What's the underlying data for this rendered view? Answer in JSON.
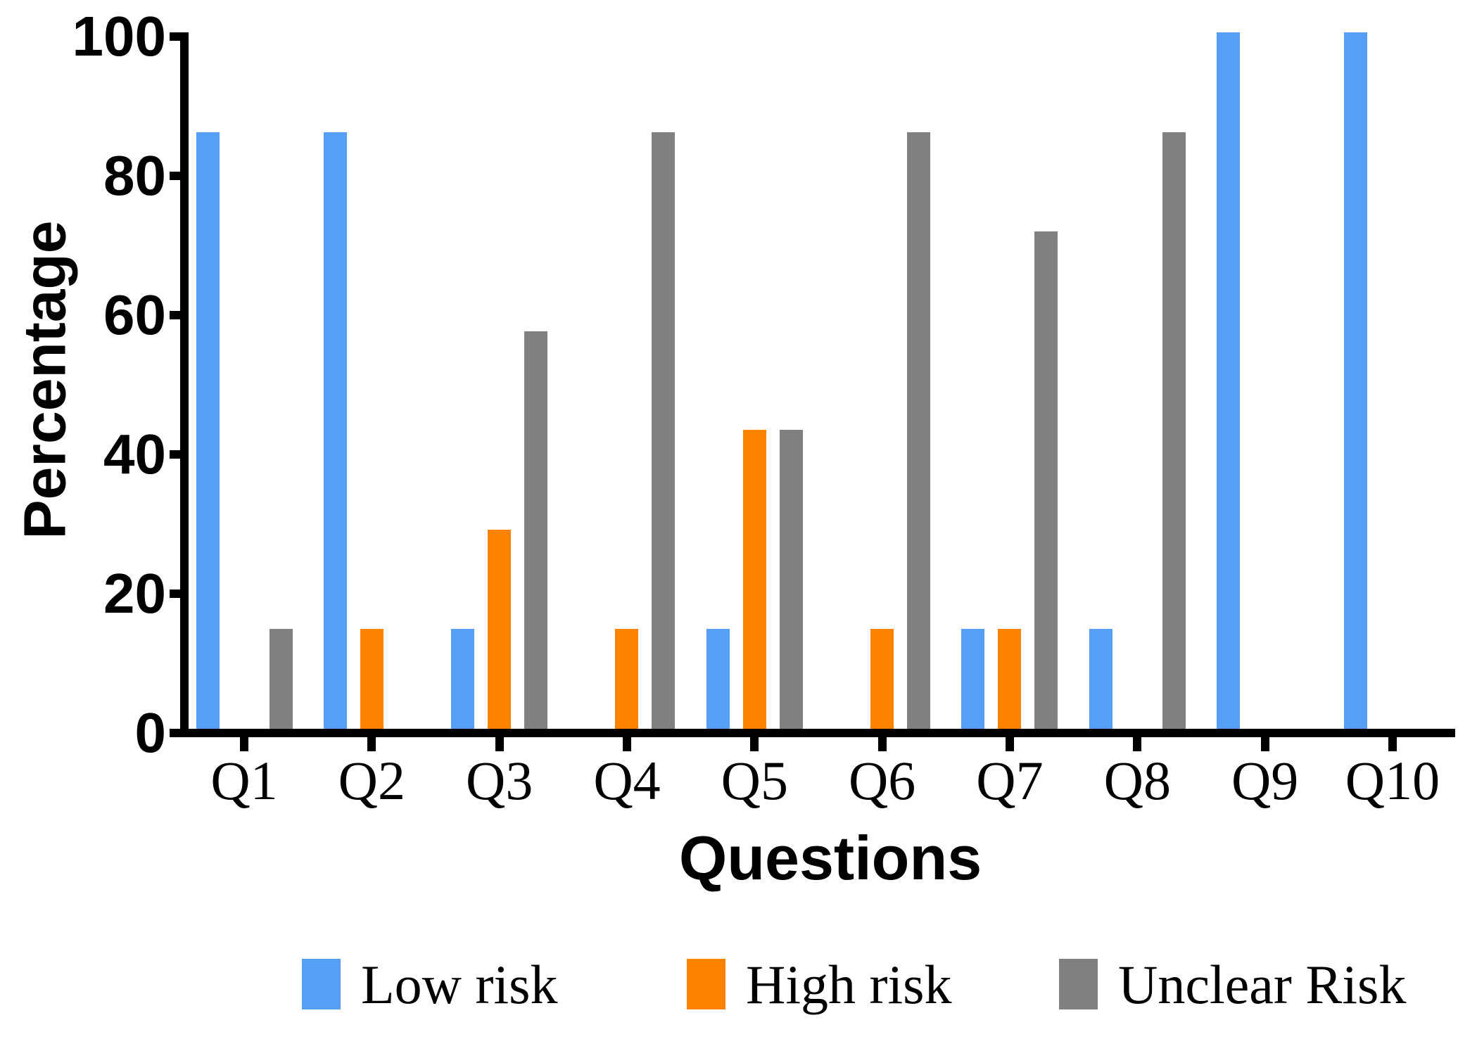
{
  "chart_data": {
    "type": "bar",
    "title": "",
    "xlabel": "Questions",
    "ylabel": "Percentage",
    "ylim": [
      0,
      100
    ],
    "yticks": [
      0,
      20,
      40,
      60,
      80,
      100
    ],
    "categories": [
      "Q1",
      "Q2",
      "Q3",
      "Q4",
      "Q5",
      "Q6",
      "Q7",
      "Q8",
      "Q9",
      "Q10"
    ],
    "series": [
      {
        "name": "Low risk",
        "color": "#559FF7",
        "values": [
          85.7,
          85.7,
          14.3,
          0,
          14.3,
          0,
          14.3,
          14.3,
          100,
          100
        ]
      },
      {
        "name": "High risk",
        "color": "#FC8200",
        "values": [
          0,
          14.3,
          28.6,
          14.3,
          42.9,
          14.3,
          14.3,
          0,
          0,
          0
        ]
      },
      {
        "name": "Unclear Risk",
        "color": "#808080",
        "values": [
          14.3,
          0,
          57.1,
          85.7,
          42.9,
          85.7,
          71.4,
          85.7,
          0,
          0
        ]
      }
    ],
    "legend_position": "bottom",
    "grid": false,
    "axis_color": "#000000",
    "background": "#FFFFFF"
  }
}
